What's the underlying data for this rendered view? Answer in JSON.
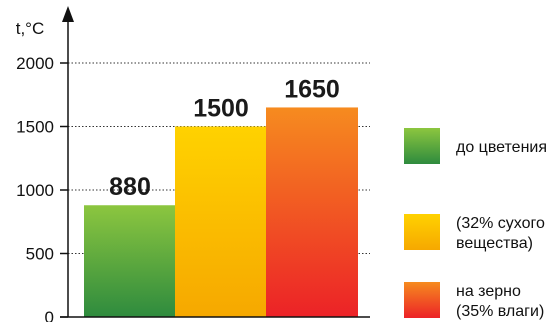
{
  "chart_data": {
    "type": "bar",
    "ylabel": "t,°C",
    "xlabel": "",
    "ylim": [
      0,
      2000
    ],
    "yticks": [
      0,
      500,
      1000,
      1500,
      2000
    ],
    "grid": true,
    "legend_position": "right",
    "categories": [
      "до цветения",
      "(32% сухого вещества)",
      "на зерно (35% влаги)"
    ],
    "values": [
      880,
      1500,
      1650
    ],
    "data_labels": [
      "880",
      "1500",
      "1650"
    ],
    "colors": [
      {
        "top": "#8cc63f",
        "bottom": "#2e8b3e"
      },
      {
        "top": "#ffd200",
        "bottom": "#f6a800"
      },
      {
        "top": "#f68b1f",
        "bottom": "#ec2227"
      }
    ],
    "legend": [
      {
        "lines": [
          "до цветения"
        ]
      },
      {
        "lines": [
          "(32% сухого",
          "вещества)"
        ]
      },
      {
        "lines": [
          "на зерно",
          "(35% влаги)"
        ]
      }
    ]
  }
}
